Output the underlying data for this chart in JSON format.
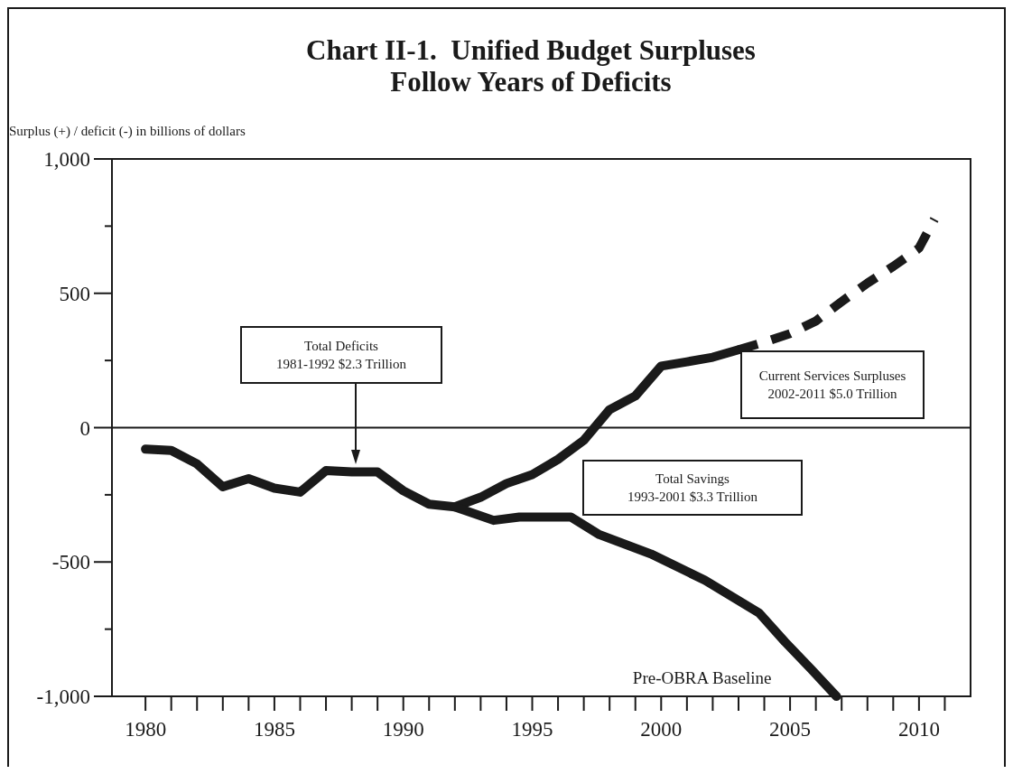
{
  "chart_data": {
    "type": "line",
    "title": "Chart II-1.  Unified Budget Surpluses\nFollow Years of Deficits",
    "ylabel": "Surplus (+) / deficit (-) in billions of dollars",
    "xlim": [
      1978.7,
      2012
    ],
    "ylim": [
      -1000,
      1000
    ],
    "xticks": [
      1980,
      {
        "value": 1981,
        "label": null
      },
      {
        "value": 1982,
        "label": null
      },
      {
        "value": 1983,
        "label": null
      },
      {
        "value": 1984,
        "label": null
      },
      1985,
      {
        "value": 1986,
        "label": null
      },
      {
        "value": 1987,
        "label": null
      },
      {
        "value": 1988,
        "label": null
      },
      {
        "value": 1989,
        "label": null
      },
      1990,
      {
        "value": 1991,
        "label": null
      },
      {
        "value": 1992,
        "label": null
      },
      {
        "value": 1993,
        "label": null
      },
      {
        "value": 1994,
        "label": null
      },
      1995,
      {
        "value": 1996,
        "label": null
      },
      {
        "value": 1997,
        "label": null
      },
      {
        "value": 1998,
        "label": null
      },
      {
        "value": 1999,
        "label": null
      },
      2000,
      {
        "value": 2001,
        "label": null
      },
      {
        "value": 2002,
        "label": null
      },
      {
        "value": 2003,
        "label": null
      },
      {
        "value": 2004,
        "label": null
      },
      2005,
      {
        "value": 2006,
        "label": null
      },
      {
        "value": 2007,
        "label": null
      },
      {
        "value": 2008,
        "label": null
      },
      {
        "value": 2009,
        "label": null
      },
      2010,
      {
        "value": 2011,
        "label": null
      }
    ],
    "yticks": [
      {
        "value": -1000,
        "label": "-1,000"
      },
      {
        "value": -750,
        "label": null
      },
      -500,
      {
        "value": -250,
        "label": null
      },
      0,
      {
        "value": 250,
        "label": null
      },
      500,
      {
        "value": 750,
        "label": null
      },
      {
        "value": 1000,
        "label": "1,000"
      }
    ],
    "grid": false,
    "marker": "none",
    "ref_lines": [
      {
        "axis": "y",
        "value": 0
      }
    ],
    "series": [
      {
        "color": "#1a1a1a",
        "line_style": "solid",
        "x": [
          1980,
          1981,
          1982,
          1983,
          1984,
          1985,
          1986,
          1987,
          1988,
          1989,
          1990,
          1991,
          1992,
          1993,
          1994,
          1995,
          1996,
          1997,
          1998,
          1999,
          2000,
          2001,
          2002,
          2003
        ],
        "values": [
          -80,
          -85,
          -135,
          -220,
          -190,
          -225,
          -240,
          -160,
          -165,
          -165,
          -235,
          -285,
          -295,
          -259,
          -208,
          -175,
          -118,
          -47,
          67,
          118,
          229,
          245,
          262,
          290
        ]
      },
      {
        "color": "#1a1a1a",
        "line_style": "dashed",
        "x": [
          2003,
          2004,
          2005,
          2006,
          2007,
          2008,
          2009,
          2010,
          2010.6
        ],
        "values": [
          290,
          318,
          350,
          397,
          469,
          538,
          600,
          668,
          776
        ]
      },
      {
        "name": "Pre-OBRA Baseline",
        "color": "#1a1a1a",
        "line_style": "solid",
        "x": [
          1992,
          1993.5,
          1994.5,
          1996.5,
          1997.6,
          1999.6,
          2001.7,
          2003.8,
          2004.8,
          2005.8,
          2006.8
        ],
        "values": [
          -295,
          -345,
          -333,
          -333,
          -398,
          -470,
          -568,
          -690,
          -797,
          -897,
          -1000
        ]
      }
    ],
    "annotations": [
      "Total Deficits\n1981-1992 $2.3 Trillion",
      "Current Services Surpluses\n2002-2011 $5.0 Trillion",
      "Total Savings\n1993-2001 $3.3 Trillion"
    ]
  }
}
